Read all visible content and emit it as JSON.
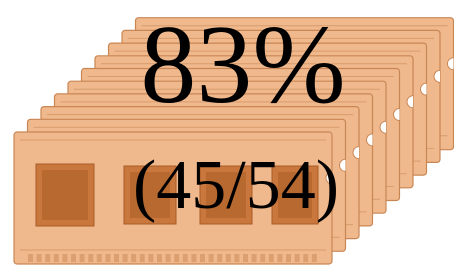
{
  "headline": "83%",
  "detail": "(45/54)"
}
